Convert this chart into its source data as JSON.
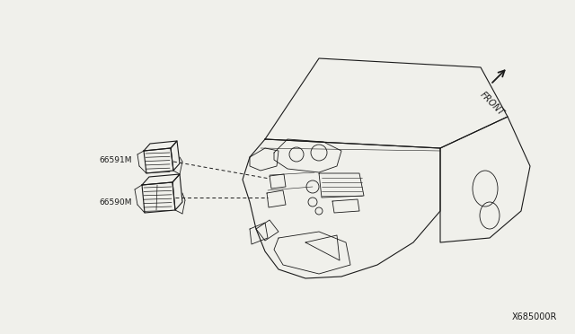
{
  "bg_color": "#f0f0eb",
  "line_color": "#1a1a1a",
  "label_color": "#1a1a1a",
  "diagram_number": "X685000R",
  "label_66591M": "66591M",
  "label_66590M": "66590M",
  "front_text": "FRONT",
  "figsize": [
    6.4,
    3.72
  ],
  "dpi": 100
}
